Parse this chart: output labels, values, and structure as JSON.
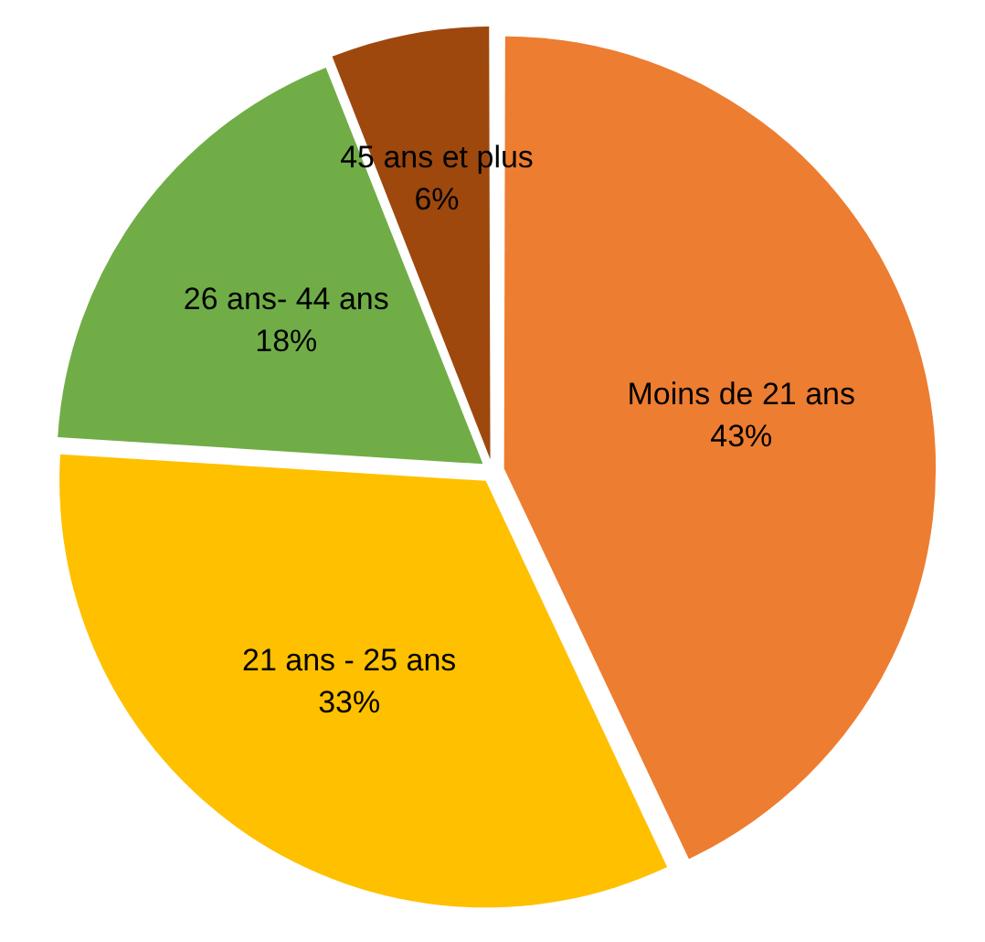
{
  "chart_data": {
    "type": "pie",
    "categories": [
      "Moins de 21 ans",
      "21 ans - 25 ans",
      "26 ans- 44 ans",
      "45 ans et plus"
    ],
    "values": [
      43,
      33,
      18,
      6
    ],
    "colors": [
      "#ed7d31",
      "#ffc000",
      "#70ad47",
      "#9e480e"
    ],
    "value_labels": [
      "43%",
      "33%",
      "18%",
      "6%"
    ],
    "legend": false
  }
}
